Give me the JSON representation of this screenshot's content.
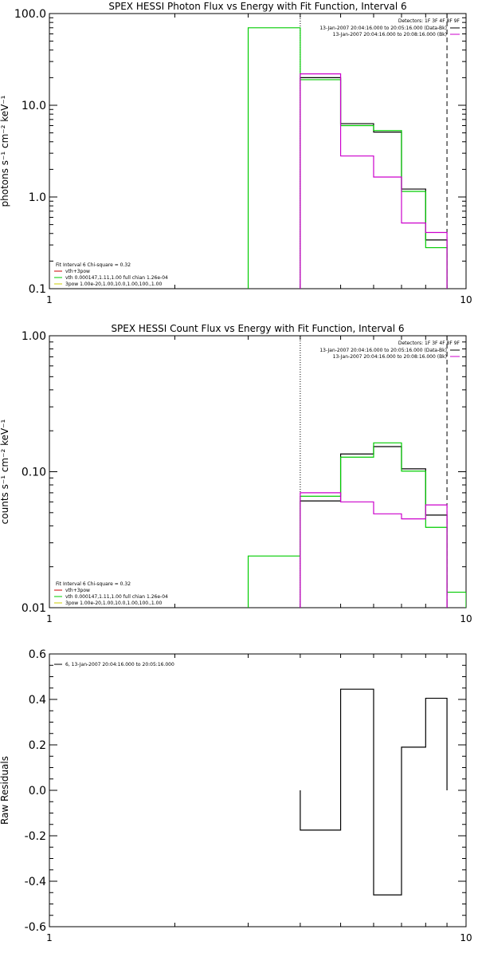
{
  "chart_data": [
    {
      "type": "line",
      "title": "SPEX HESSI Photon Flux vs Energy with Fit Function, Interval 6",
      "xlabel": "",
      "ylabel": "photons s⁻¹ cm⁻² keV⁻¹",
      "xscale": "log",
      "yscale": "log",
      "xlim": [
        1,
        10
      ],
      "ylim": [
        0.1,
        100
      ],
      "xticks": [
        "1",
        "10"
      ],
      "yticks": [
        "0.1",
        "1.0",
        "10.0",
        "100.0"
      ],
      "detectors": "Detectors: 1F 3F 4F 8F 9F",
      "legend_right": [
        {
          "label": "13-Jan-2007 20:04:16.000 to 20:05:16.000 (Data-Bk)",
          "color": "#000000"
        },
        {
          "label": "13-Jan-2007 20:04:16.000 to 20:08:16.000 (Bk)",
          "color": "#cc00cc"
        }
      ],
      "legend_left": [
        {
          "label": "Fit Interval  6    Chi-square = 0.32",
          "color": null
        },
        {
          "label": "vth+3pow",
          "color": "#cc0000"
        },
        {
          "label": "vth 0.000147,1.11,1.00   full chian 1.26e-04",
          "color": "#00cc00"
        },
        {
          "label": "3pow 1.00e-20,1.00,10.0,1.00,100.,1.00",
          "color": "#cccc00"
        }
      ],
      "vlines": [
        {
          "x": 4.0,
          "style": "dotted"
        },
        {
          "x": 9.0,
          "style": "dashed"
        }
      ],
      "edges": [
        3,
        4,
        5,
        6,
        7,
        8,
        9,
        10
      ],
      "series": [
        {
          "name": "Data-Bk",
          "color": "#000000",
          "values": [
            null,
            20,
            6.3,
            5.1,
            1.22,
            0.34,
            null
          ]
        },
        {
          "name": "Fit",
          "color": "#00cc00",
          "values": [
            70,
            19,
            6.0,
            5.3,
            1.15,
            0.28,
            null
          ]
        },
        {
          "name": "Bk",
          "color": "#cc00cc",
          "values": [
            null,
            22,
            2.8,
            1.65,
            0.52,
            0.41,
            null
          ]
        }
      ]
    },
    {
      "type": "line",
      "title": "SPEX HESSI Count Flux vs Energy with Fit Function, Interval 6",
      "xlabel": "",
      "ylabel": "counts s⁻¹ cm⁻² keV⁻¹",
      "xscale": "log",
      "yscale": "log",
      "xlim": [
        1,
        10
      ],
      "ylim": [
        0.01,
        1.0
      ],
      "xticks": [
        "1",
        "10"
      ],
      "yticks": [
        "0.01",
        "0.10",
        "1.00"
      ],
      "detectors": "Detectors: 1F 3F 4F 8F 9F",
      "legend_right": [
        {
          "label": "13-Jan-2007 20:04:16.000 to 20:05:16.000 (Data-Bk)",
          "color": "#000000"
        },
        {
          "label": "13-Jan-2007 20:04:16.000 to 20:08:16.000 (Bk)",
          "color": "#cc00cc"
        }
      ],
      "legend_left": [
        {
          "label": "Fit Interval  6    Chi-square = 0.32",
          "color": null
        },
        {
          "label": "vth+3pow",
          "color": "#cc0000"
        },
        {
          "label": "vth 0.000147,1.11,1.00   full chian 1.26e-04",
          "color": "#00cc00"
        },
        {
          "label": "3pow 1.00e-20,1.00,10.0,1.00,100.,1.00",
          "color": "#cccc00"
        }
      ],
      "vlines": [
        {
          "x": 4.0,
          "style": "dotted"
        },
        {
          "x": 9.0,
          "style": "dashed"
        }
      ],
      "edges": [
        3,
        4,
        5,
        6,
        7,
        8,
        9,
        10
      ],
      "series": [
        {
          "name": "Data-Bk",
          "color": "#000000",
          "values": [
            null,
            0.061,
            0.135,
            0.153,
            0.105,
            0.048,
            null
          ]
        },
        {
          "name": "Fit",
          "color": "#00cc00",
          "values": [
            0.024,
            0.066,
            0.128,
            0.163,
            0.101,
            0.039,
            0.013
          ]
        },
        {
          "name": "Bk",
          "color": "#cc00cc",
          "values": [
            null,
            0.07,
            0.06,
            0.049,
            0.045,
            0.057,
            null
          ]
        }
      ]
    },
    {
      "type": "line",
      "title": "",
      "xlabel": "",
      "ylabel": "Raw Residuals",
      "xscale": "log",
      "yscale": "linear",
      "xlim": [
        1,
        10
      ],
      "ylim": [
        -0.6,
        0.6
      ],
      "xticks": [
        "1",
        "10"
      ],
      "yticks": [
        "-0.6",
        "-0.4",
        "-0.2",
        "0.0",
        "0.2",
        "0.4",
        "0.6"
      ],
      "legend_left": [
        {
          "label": "6, 13-Jan-2007 20:04:16.000 to 20:05:16.000",
          "color": "#000000"
        }
      ],
      "edges": [
        4,
        5,
        6,
        7,
        8,
        9
      ],
      "series": [
        {
          "name": "6",
          "color": "#000000",
          "values": [
            -0.175,
            0.445,
            -0.46,
            0.19,
            0.405
          ]
        }
      ]
    }
  ]
}
